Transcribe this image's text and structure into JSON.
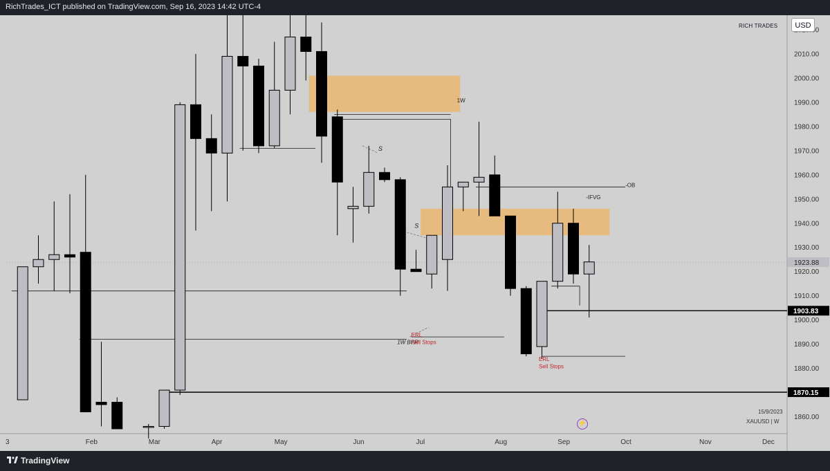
{
  "header": {
    "title": "RichTrades_ICT published on TradingView.com, Sep 16, 2023 14:42 UTC-4"
  },
  "footer": {
    "brand": "TradingView",
    "logo_icon": "tradingview-logo-icon"
  },
  "toolbar": {
    "currency_button": "USD",
    "watermark_label": "RICH TRADES"
  },
  "info": {
    "date": "15/9/2023",
    "symbol": "XAUUSD | W",
    "replay_icon": "lightning-icon"
  },
  "chart_data": {
    "type": "candlestick",
    "symbol": "XAUUSD",
    "timeframe": "W",
    "ylim": [
      1853.0,
      2026.0
    ],
    "y_ticks": [
      "1860.00",
      "1870.00",
      "1880.00",
      "1890.00",
      "1900.00",
      "1910.00",
      "1920.00",
      "1930.00",
      "1940.00",
      "1950.00",
      "1960.00",
      "1970.00",
      "1980.00",
      "1990.00",
      "2000.00",
      "2010.00",
      "2020.00"
    ],
    "x_ticks": [
      {
        "label": "3",
        "week": 0
      },
      {
        "label": "Feb",
        "week": 5
      },
      {
        "label": "Mar",
        "week": 9
      },
      {
        "label": "Apr",
        "week": 13
      },
      {
        "label": "May",
        "week": 17
      },
      {
        "label": "Jun",
        "week": 22
      },
      {
        "label": "Jul",
        "week": 26
      },
      {
        "label": "Aug",
        "week": 31
      },
      {
        "label": "Sep",
        "week": 35
      },
      {
        "label": "Oct",
        "week": 39
      },
      {
        "label": "Nov",
        "week": 44
      },
      {
        "label": "Dec",
        "week": 48
      }
    ],
    "candles": [
      {
        "week": 1,
        "open": 1867,
        "high": 1922,
        "low": 1867,
        "close": 1922
      },
      {
        "week": 2,
        "open": 1922,
        "high": 1935,
        "low": 1915,
        "close": 1925
      },
      {
        "week": 3,
        "open": 1925,
        "high": 1949,
        "low": 1912,
        "close": 1927
      },
      {
        "week": 4,
        "open": 1927,
        "high": 1952,
        "low": 1911,
        "close": 1926
      },
      {
        "week": 5,
        "open": 1928,
        "high": 1960,
        "low": 1862,
        "close": 1862
      },
      {
        "week": 6,
        "open": 1866,
        "high": 1891,
        "low": 1856,
        "close": 1865
      },
      {
        "week": 7,
        "open": 1866,
        "high": 1868,
        "low": 1855,
        "close": 1855
      },
      {
        "week": 9,
        "open": 1856,
        "high": 1857,
        "low": 1851,
        "close": 1856
      },
      {
        "week": 10,
        "open": 1856,
        "high": 1871,
        "low": 1855,
        "close": 1871
      },
      {
        "week": 11,
        "open": 1871,
        "high": 1990,
        "low": 1869,
        "close": 1989
      },
      {
        "week": 12,
        "open": 1989,
        "high": 2010,
        "low": 1937,
        "close": 1975
      },
      {
        "week": 13,
        "open": 1975,
        "high": 1985,
        "low": 1945,
        "close": 1969
      },
      {
        "week": 14,
        "open": 1969,
        "high": 2040,
        "low": 1949,
        "close": 2009
      },
      {
        "week": 15,
        "open": 2009,
        "high": 2048,
        "low": 1970,
        "close": 2005
      },
      {
        "week": 16,
        "open": 2005,
        "high": 2008,
        "low": 1969,
        "close": 1972
      },
      {
        "week": 17,
        "open": 1972,
        "high": 2015,
        "low": 1971,
        "close": 1995
      },
      {
        "week": 18,
        "open": 1995,
        "high": 2048,
        "low": 1985,
        "close": 2017
      },
      {
        "week": 19,
        "open": 2017,
        "high": 2048,
        "low": 1999,
        "close": 2011
      },
      {
        "week": 20,
        "open": 2011,
        "high": 2023,
        "low": 1965,
        "close": 1976
      },
      {
        "week": 21,
        "open": 1984,
        "high": 1987,
        "low": 1935,
        "close": 1957
      },
      {
        "week": 22,
        "open": 1946,
        "high": 1955,
        "low": 1932,
        "close": 1947
      },
      {
        "week": 23,
        "open": 1947,
        "high": 1972,
        "low": 1944,
        "close": 1961
      },
      {
        "week": 24,
        "open": 1961,
        "high": 1963,
        "low": 1957,
        "close": 1958
      },
      {
        "week": 25,
        "open": 1958,
        "high": 1959,
        "low": 1910,
        "close": 1921
      },
      {
        "week": 26,
        "open": 1921,
        "high": 1929,
        "low": 1921,
        "close": 1920
      },
      {
        "week": 27,
        "open": 1919,
        "high": 1935,
        "low": 1913,
        "close": 1935
      },
      {
        "week": 28,
        "open": 1925,
        "high": 1964,
        "low": 1912,
        "close": 1955
      },
      {
        "week": 29,
        "open": 1955,
        "high": 1957,
        "low": 1945,
        "close": 1957
      },
      {
        "week": 30,
        "open": 1957,
        "high": 1982,
        "low": 1943,
        "close": 1959
      },
      {
        "week": 31,
        "open": 1960,
        "high": 1968,
        "low": 1943,
        "close": 1943
      },
      {
        "week": 32,
        "open": 1943,
        "high": 1943,
        "low": 1910,
        "close": 1913
      },
      {
        "week": 33,
        "open": 1913,
        "high": 1914,
        "low": 1885,
        "close": 1886
      },
      {
        "week": 34,
        "open": 1889,
        "high": 1916,
        "low": 1884,
        "close": 1916
      },
      {
        "week": 35,
        "open": 1916,
        "high": 1953,
        "low": 1913,
        "close": 1940
      },
      {
        "week": 36,
        "open": 1940,
        "high": 1946,
        "low": 1915,
        "close": 1919
      },
      {
        "week": 37,
        "open": 1919,
        "high": 1931,
        "low": 1901,
        "close": 1924
      }
    ],
    "zones": [
      {
        "label": "1W",
        "from_week": 19.2,
        "to_week": 28.8,
        "top": 2001,
        "bottom": 1986
      },
      {
        "label": "-IFVG",
        "from_week": 26.3,
        "to_week": 38.3,
        "top": 1946,
        "bottom": 1935
      }
    ],
    "levels": [
      {
        "price": 1903.83,
        "from_week": 34.3,
        "to_week": 49.8,
        "label": "1903.83"
      },
      {
        "price": 1870.15,
        "from_week": 10.3,
        "to_week": 49.8,
        "label": "1870.15"
      }
    ],
    "current_price": 1923.88,
    "annotations": [
      {
        "text": "1W",
        "week": 28.6,
        "price": 1990
      },
      {
        "text": "-OB",
        "week": 39.3,
        "price": 1955
      },
      {
        "text": "-IFVG",
        "week": 36.8,
        "price": 1950
      },
      {
        "text": "1W BPR",
        "week": 24.8,
        "price": 1890
      },
      {
        "text": "ERL",
        "week": 25.7,
        "price": 1893
      },
      {
        "text": "Sell Stops",
        "week": 25.7,
        "price": 1890
      },
      {
        "text": "ERL",
        "week": 33.8,
        "price": 1883
      },
      {
        "text": "Sell Stops",
        "week": 33.8,
        "price": 1880
      },
      {
        "text": "S",
        "week": 23.6,
        "price": 1970
      },
      {
        "text": "S",
        "week": 25.9,
        "price": 1938
      }
    ]
  }
}
